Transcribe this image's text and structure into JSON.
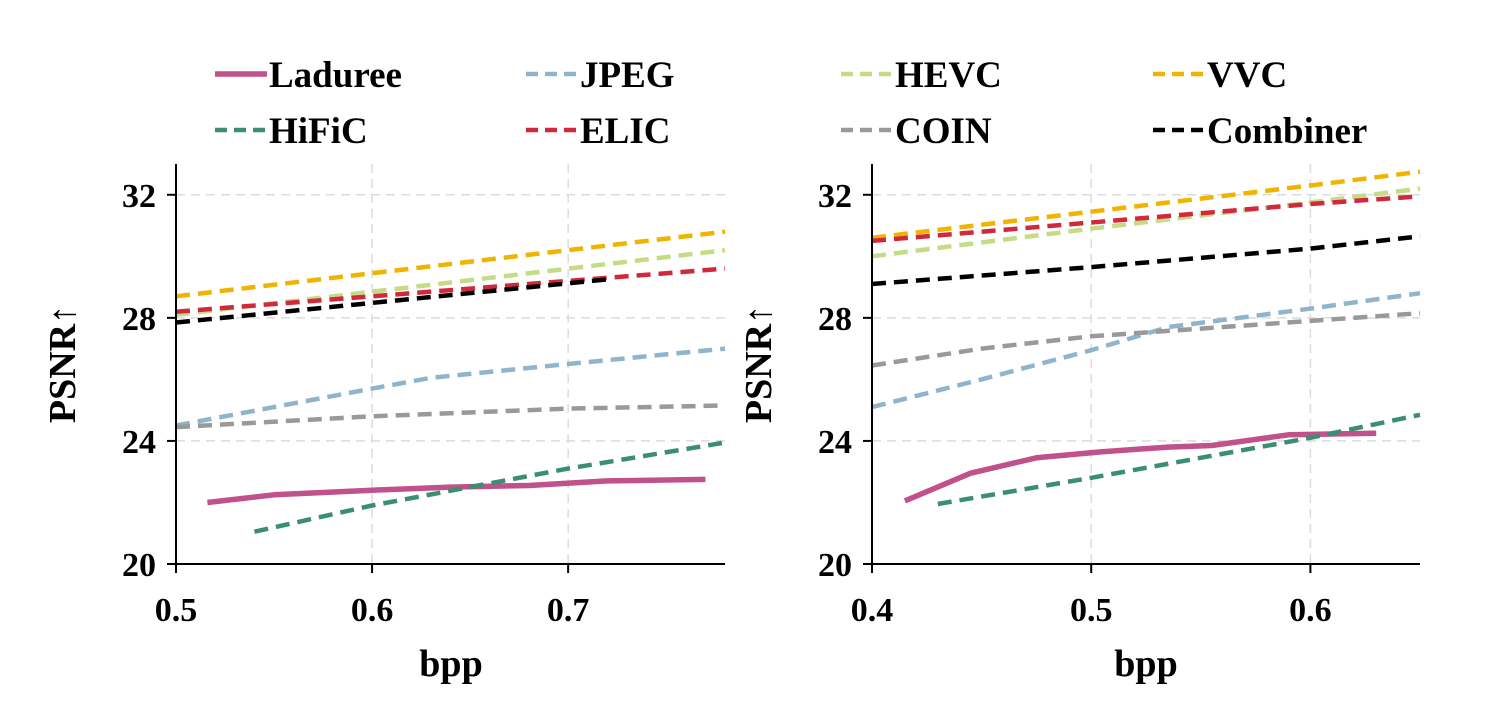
{
  "legend": [
    {
      "name": "Laduree",
      "color": "#c0518a",
      "dash": "solid"
    },
    {
      "name": "JPEG",
      "color": "#8fb4cc",
      "dash": "dashed"
    },
    {
      "name": "HEVC",
      "color": "#c4dc86",
      "dash": "dashed"
    },
    {
      "name": "VVC",
      "color": "#f0b400",
      "dash": "dashed"
    },
    {
      "name": "HiFiC",
      "color": "#3b8f70",
      "dash": "dashed"
    },
    {
      "name": "ELIC",
      "color": "#d1283c",
      "dash": "dashed"
    },
    {
      "name": "COIN",
      "color": "#999999",
      "dash": "dashed"
    },
    {
      "name": "Combiner",
      "color": "#000000",
      "dash": "dashed"
    }
  ],
  "chart_data": [
    {
      "type": "line",
      "title": "",
      "xlabel": "bpp",
      "ylabel": "PSNR↑",
      "xlim": [
        0.5,
        0.78
      ],
      "ylim": [
        20,
        33
      ],
      "xticks": [
        0.5,
        0.6,
        0.7
      ],
      "xtick_labels": [
        "0.5",
        "0.6",
        "0.7"
      ],
      "yticks": [
        20,
        24,
        28,
        32
      ],
      "ytick_labels": [
        "20",
        "24",
        "28",
        "32"
      ],
      "grid": true,
      "series": [
        {
          "name": "Laduree",
          "x": [
            0.516,
            0.55,
            0.6,
            0.64,
            0.68,
            0.72,
            0.77
          ],
          "y": [
            22.0,
            22.25,
            22.4,
            22.5,
            22.55,
            22.7,
            22.75
          ]
        },
        {
          "name": "JPEG",
          "x": [
            0.5,
            0.55,
            0.6,
            0.63,
            0.7,
            0.78
          ],
          "y": [
            24.5,
            25.1,
            25.7,
            26.05,
            26.5,
            27.0
          ]
        },
        {
          "name": "HEVC",
          "x": [
            0.5,
            0.78
          ],
          "y": [
            28.1,
            30.2
          ]
        },
        {
          "name": "VVC",
          "x": [
            0.5,
            0.78
          ],
          "y": [
            28.7,
            30.8
          ]
        },
        {
          "name": "HiFiC",
          "x": [
            0.54,
            0.6,
            0.7,
            0.78
          ],
          "y": [
            21.05,
            21.9,
            23.1,
            23.95
          ]
        },
        {
          "name": "ELIC",
          "x": [
            0.5,
            0.78
          ],
          "y": [
            28.2,
            29.6
          ]
        },
        {
          "name": "COIN",
          "x": [
            0.5,
            0.6,
            0.7,
            0.78
          ],
          "y": [
            24.45,
            24.8,
            25.05,
            25.15
          ]
        },
        {
          "name": "Combiner",
          "x": [
            0.5,
            0.72
          ],
          "y": [
            27.85,
            29.25
          ]
        }
      ]
    },
    {
      "type": "line",
      "title": "",
      "xlabel": "bpp",
      "ylabel": "PSNR↑",
      "xlim": [
        0.4,
        0.65
      ],
      "ylim": [
        20,
        33
      ],
      "xticks": [
        0.4,
        0.5,
        0.6
      ],
      "xtick_labels": [
        "0.4",
        "0.5",
        "0.6"
      ],
      "yticks": [
        20,
        24,
        28,
        32
      ],
      "ytick_labels": [
        "20",
        "24",
        "28",
        "32"
      ],
      "grid": true,
      "series": [
        {
          "name": "Laduree",
          "x": [
            0.415,
            0.445,
            0.475,
            0.505,
            0.535,
            0.555,
            0.59,
            0.63
          ],
          "y": [
            22.05,
            22.95,
            23.45,
            23.65,
            23.8,
            23.85,
            24.2,
            24.25
          ]
        },
        {
          "name": "JPEG",
          "x": [
            0.4,
            0.45,
            0.5,
            0.535,
            0.6,
            0.65
          ],
          "y": [
            25.1,
            26.0,
            26.95,
            27.7,
            28.3,
            28.8
          ]
        },
        {
          "name": "HEVC",
          "x": [
            0.4,
            0.5,
            0.6,
            0.65
          ],
          "y": [
            30.0,
            30.9,
            31.75,
            32.2
          ]
        },
        {
          "name": "VVC",
          "x": [
            0.4,
            0.5,
            0.6,
            0.65
          ],
          "y": [
            30.6,
            31.45,
            32.3,
            32.75
          ]
        },
        {
          "name": "HiFiC",
          "x": [
            0.43,
            0.5,
            0.6,
            0.65
          ],
          "y": [
            21.95,
            22.8,
            24.1,
            24.85
          ]
        },
        {
          "name": "ELIC",
          "x": [
            0.4,
            0.5,
            0.6,
            0.65
          ],
          "y": [
            30.5,
            31.1,
            31.7,
            31.95
          ]
        },
        {
          "name": "COIN",
          "x": [
            0.4,
            0.45,
            0.5,
            0.55,
            0.6,
            0.65
          ],
          "y": [
            26.45,
            27.0,
            27.4,
            27.65,
            27.9,
            28.15
          ]
        },
        {
          "name": "Combiner",
          "x": [
            0.4,
            0.5,
            0.6,
            0.65
          ],
          "y": [
            29.1,
            29.65,
            30.25,
            30.65
          ]
        }
      ]
    }
  ]
}
